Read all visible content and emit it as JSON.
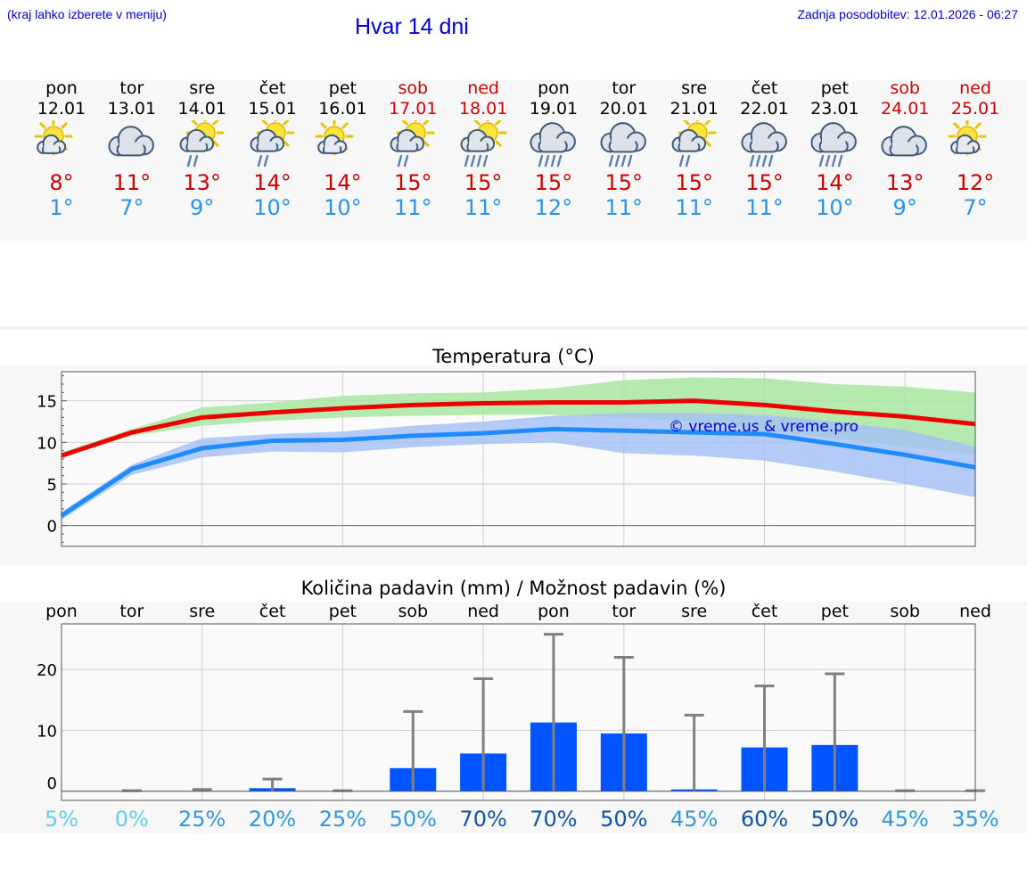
{
  "header": {
    "hint": "(kraj lahko izberete v meniju)",
    "title": "Hvar 14 dni",
    "updated": "Zadnja posodobitev: 12.01.2026 - 06:27"
  },
  "colors": {
    "link": "#0000cc",
    "max_temp": "#cc0000",
    "min_temp": "#2a93e8",
    "bar": "#0055ff",
    "whisker": "#808080"
  },
  "days": [
    {
      "name": "pon",
      "date": "12.01",
      "icon": "sun-cloud-icon",
      "max": "8°",
      "min": "1°",
      "weekend": false
    },
    {
      "name": "tor",
      "date": "13.01",
      "icon": "cloud-icon",
      "max": "11°",
      "min": "7°",
      "weekend": false
    },
    {
      "name": "sre",
      "date": "14.01",
      "icon": "sun-cloud-rain-icon",
      "max": "13°",
      "min": "9°",
      "weekend": false
    },
    {
      "name": "čet",
      "date": "15.01",
      "icon": "sun-cloud-rain-icon",
      "max": "14°",
      "min": "10°",
      "weekend": false
    },
    {
      "name": "pet",
      "date": "16.01",
      "icon": "sun-cloud-icon",
      "max": "14°",
      "min": "10°",
      "weekend": false
    },
    {
      "name": "sob",
      "date": "17.01",
      "icon": "sun-cloud-rain-icon",
      "max": "15°",
      "min": "11°",
      "weekend": true
    },
    {
      "name": "ned",
      "date": "18.01",
      "icon": "sun-cloud-heavy-rain-icon",
      "max": "15°",
      "min": "11°",
      "weekend": true
    },
    {
      "name": "pon",
      "date": "19.01",
      "icon": "cloud-heavy-rain-icon",
      "max": "15°",
      "min": "12°",
      "weekend": false
    },
    {
      "name": "tor",
      "date": "20.01",
      "icon": "cloud-heavy-rain-icon",
      "max": "15°",
      "min": "11°",
      "weekend": false
    },
    {
      "name": "sre",
      "date": "21.01",
      "icon": "sun-cloud-rain-icon",
      "max": "15°",
      "min": "11°",
      "weekend": false
    },
    {
      "name": "čet",
      "date": "22.01",
      "icon": "cloud-heavy-rain-icon",
      "max": "15°",
      "min": "11°",
      "weekend": false
    },
    {
      "name": "pet",
      "date": "23.01",
      "icon": "cloud-heavy-rain-icon",
      "max": "14°",
      "min": "10°",
      "weekend": false
    },
    {
      "name": "sob",
      "date": "24.01",
      "icon": "cloud-icon",
      "max": "13°",
      "min": "9°",
      "weekend": true
    },
    {
      "name": "ned",
      "date": "25.01",
      "icon": "sun-cloud-icon",
      "max": "12°",
      "min": "7°",
      "weekend": true
    }
  ],
  "chart_data": [
    {
      "type": "line",
      "title": "Temperatura (°C)",
      "watermark": "© vreme.us & vreme.pro",
      "ylim": [
        -2.5,
        18.5
      ],
      "yticks": [
        0,
        5,
        10,
        15
      ],
      "x": [
        0,
        1,
        2,
        3,
        4,
        5,
        6,
        7,
        8,
        9,
        10,
        11,
        12,
        13
      ],
      "series": [
        {
          "name": "max",
          "color": "#ee0000",
          "values": [
            8.4,
            11.2,
            13.0,
            13.6,
            14.1,
            14.5,
            14.7,
            14.8,
            14.8,
            15.0,
            14.5,
            13.7,
            13.1,
            12.2
          ]
        },
        {
          "name": "min",
          "color": "#1e8cff",
          "values": [
            1.2,
            6.8,
            9.3,
            10.2,
            10.3,
            10.8,
            11.1,
            11.6,
            11.4,
            11.2,
            11.0,
            9.8,
            8.5,
            7.0
          ]
        }
      ],
      "bands": [
        {
          "name": "max_range",
          "color": "#a8e6a1",
          "low": [
            8.2,
            10.8,
            12.0,
            12.6,
            13.0,
            13.2,
            13.3,
            13.3,
            13.0,
            12.5,
            11.5,
            10.5,
            9.5,
            8.5
          ],
          "high": [
            8.8,
            11.6,
            14.2,
            14.8,
            15.6,
            15.9,
            16.0,
            16.5,
            17.5,
            17.8,
            17.7,
            17.0,
            16.7,
            16.0
          ]
        },
        {
          "name": "min_range",
          "color": "#a6c2f5",
          "low": [
            0.7,
            6.1,
            8.2,
            8.9,
            8.8,
            9.4,
            9.8,
            10.0,
            8.7,
            8.4,
            7.8,
            6.5,
            5.0,
            3.4
          ],
          "high": [
            1.6,
            7.3,
            10.5,
            11.0,
            11.3,
            12.0,
            12.5,
            13.2,
            13.5,
            13.5,
            13.3,
            12.5,
            11.5,
            9.5
          ]
        }
      ]
    },
    {
      "type": "bar",
      "title": "Količina padavin (mm) / Možnost padavin (%)",
      "categories": [
        "pon",
        "tor",
        "sre",
        "čet",
        "pet",
        "sob",
        "ned",
        "pon",
        "tor",
        "sre",
        "čet",
        "pet",
        "sob",
        "ned"
      ],
      "ylim": [
        -1.5,
        27.5
      ],
      "yticks": [
        0,
        10,
        20
      ],
      "values": [
        0,
        0,
        0,
        0.5,
        0,
        3.8,
        6.2,
        11.3,
        9.5,
        0.3,
        7.2,
        7.6,
        0,
        0
      ],
      "whisker_high": [
        0,
        0.1,
        0.3,
        2,
        0.1,
        13.1,
        18.5,
        25.8,
        22.0,
        12.5,
        17.3,
        19.3,
        0.1,
        0.1
      ],
      "probability": [
        "5%",
        "0%",
        "25%",
        "20%",
        "25%",
        "50%",
        "70%",
        "70%",
        "50%",
        "45%",
        "60%",
        "50%",
        "45%",
        "35%"
      ],
      "probability_colors": [
        "#66ccee",
        "#66ccee",
        "#3399dd",
        "#3399dd",
        "#3399dd",
        "#3399dd",
        "#1155aa",
        "#1155aa",
        "#1155aa",
        "#3399dd",
        "#1155aa",
        "#1155aa",
        "#3399dd",
        "#3399dd"
      ]
    }
  ]
}
